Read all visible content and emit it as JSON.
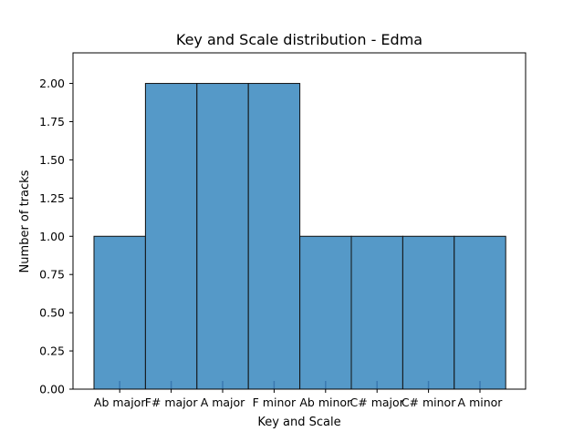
{
  "chart_data": {
    "type": "bar",
    "title": "Key and Scale distribution - Edma",
    "xlabel": "Key and Scale",
    "ylabel": "Number of tracks",
    "categories": [
      "Ab major",
      "F# major",
      "A major",
      "F minor",
      "Ab minor",
      "C# major",
      "C# minor",
      "A minor"
    ],
    "values": [
      1,
      2,
      2,
      2,
      1,
      1,
      1,
      1
    ],
    "ylim": [
      0,
      2.2
    ],
    "yticks": [
      "0.00",
      "0.25",
      "0.50",
      "0.75",
      "1.00",
      "1.25",
      "1.50",
      "1.75",
      "2.00"
    ],
    "grid": false,
    "colors": {
      "bar_fill": "#5599c8",
      "bar_edge": "#111111",
      "rug": "#3a78b0"
    }
  }
}
